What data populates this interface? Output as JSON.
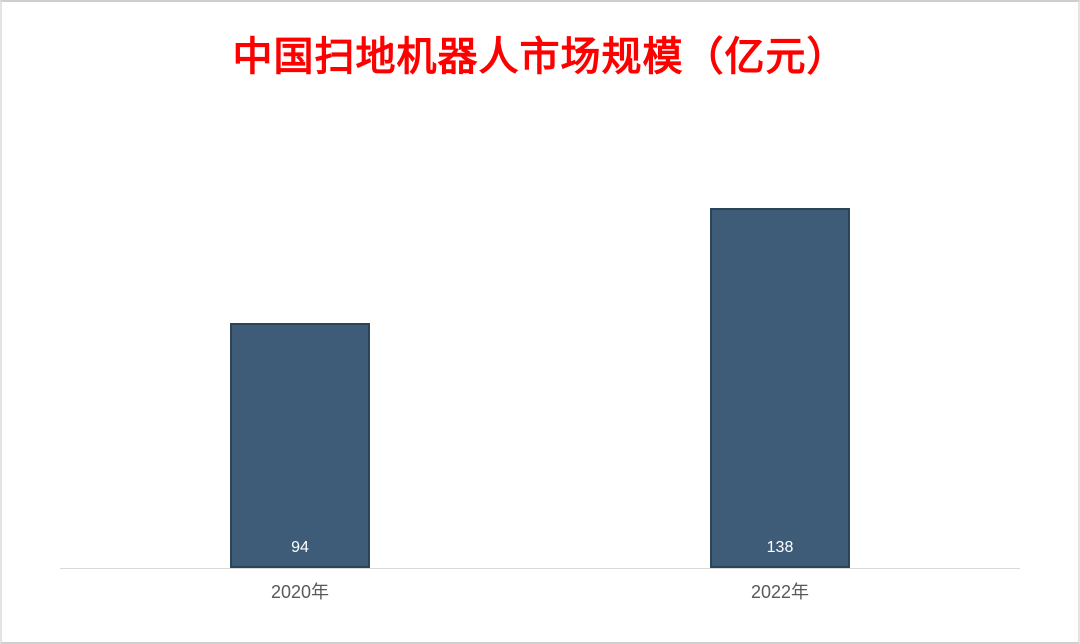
{
  "page": {
    "background": "#ffffff",
    "frame_border_color": "#cfcfcf"
  },
  "chart_data": {
    "type": "bar",
    "title": "中国扫地机器人市场规模（亿元）",
    "categories": [
      "2020年",
      "2022年"
    ],
    "values": [
      94,
      138
    ],
    "value_labels": [
      "94",
      "138"
    ],
    "ylim": [
      0,
      180
    ],
    "grid": false,
    "legend": false,
    "y_axis_visible": false,
    "bar_color": "#3e5c78",
    "bar_border_color": "#2c4358",
    "value_label_color": "#ffffff",
    "title_color": "#ff0000",
    "axis_line_color": "#d9d9d9",
    "tick_label_color": "#595959"
  }
}
